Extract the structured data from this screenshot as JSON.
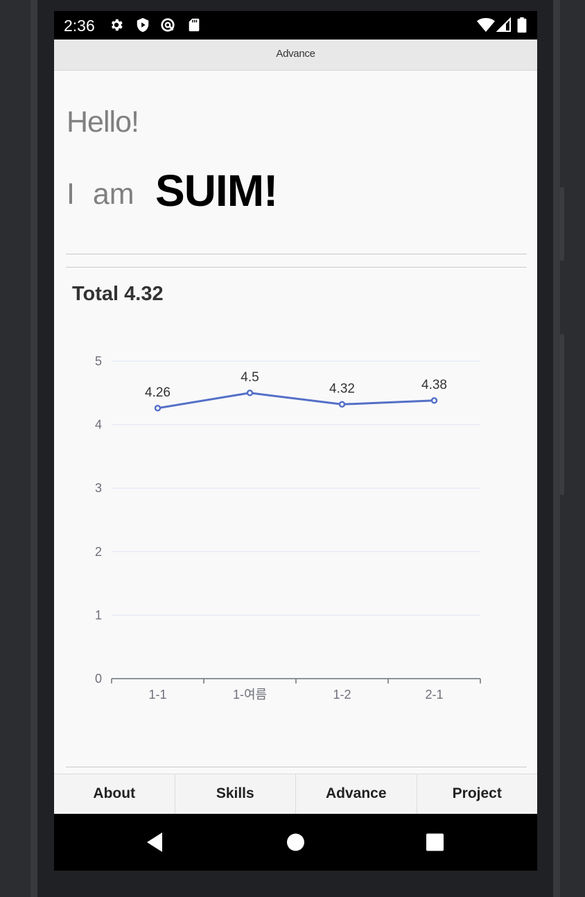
{
  "status_bar": {
    "time": "2:36",
    "left_icons": [
      "gear-icon",
      "shield-play-icon",
      "at-sign-icon",
      "sd-card-icon"
    ],
    "right_icons": [
      "wifi-icon",
      "signal-icon",
      "battery-icon"
    ]
  },
  "app_bar": {
    "title": "Advance"
  },
  "intro": {
    "hello": "Hello!",
    "i_am": "I am",
    "name": "SUIM!"
  },
  "summary": {
    "total_label": "Total 4.32"
  },
  "chart_data": {
    "type": "line",
    "categories": [
      "1-1",
      "1-여름",
      "1-2",
      "2-1"
    ],
    "series": [
      {
        "values": [
          4.26,
          4.5,
          4.32,
          4.38
        ],
        "color": "#5470c6"
      }
    ],
    "ylim": [
      0,
      5
    ],
    "yticks": [
      "0",
      "1",
      "2",
      "3",
      "4",
      "5"
    ],
    "data_labels": [
      "4.26",
      "4.5",
      "4.32",
      "4.38"
    ],
    "grid": true,
    "legend": "none"
  },
  "tabs": [
    {
      "label": "About"
    },
    {
      "label": "Skills"
    },
    {
      "label": "Advance"
    },
    {
      "label": "Project"
    }
  ],
  "nav_bar": {
    "icons": [
      "back-icon",
      "home-icon",
      "recents-icon"
    ]
  },
  "colors": {
    "accent": "#5470c6",
    "grid": "#e0e6f1",
    "axis": "#6e7079"
  }
}
